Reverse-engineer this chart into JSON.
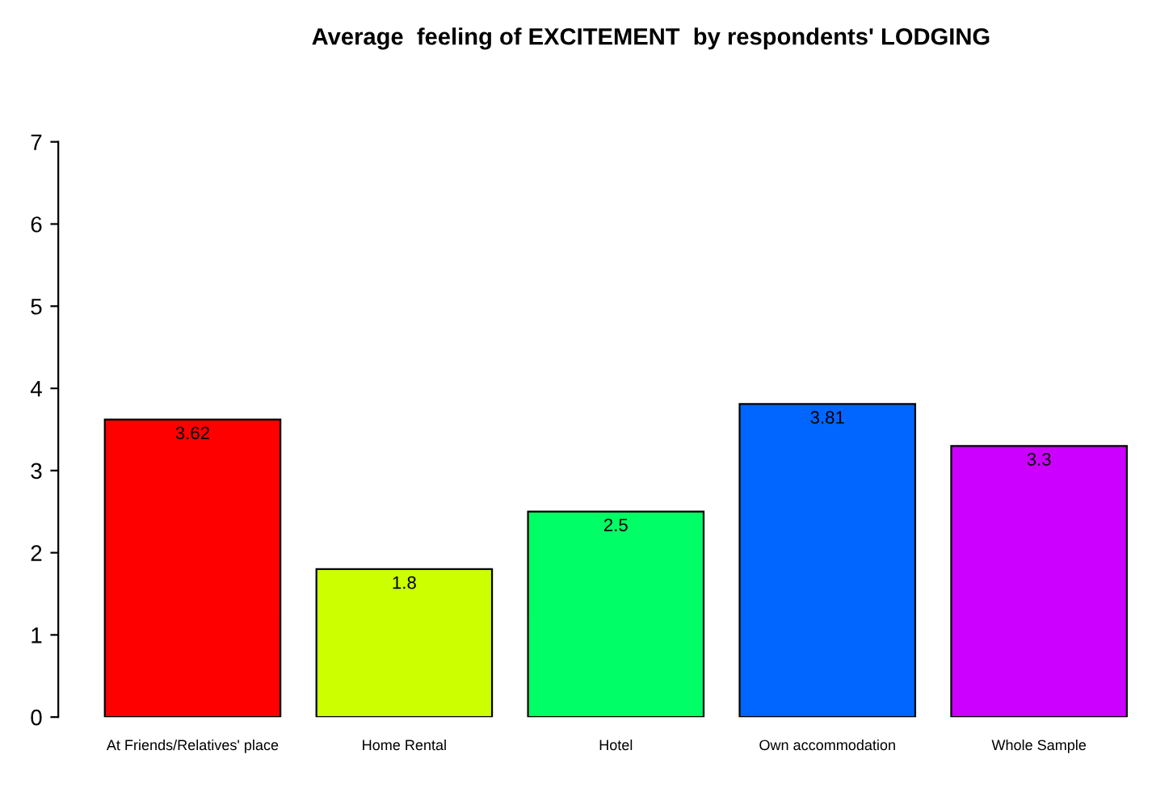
{
  "chart_data": {
    "type": "bar",
    "title": "Average  feeling of EXCITEMENT  by respondents' LODGING",
    "categories": [
      "At Friends/Relatives' place",
      "Home Rental",
      "Hotel",
      "Own accommodation",
      "Whole Sample"
    ],
    "values": [
      3.62,
      1.8,
      2.5,
      3.81,
      3.3
    ],
    "colors": [
      "#ff0000",
      "#ccff00",
      "#00ff66",
      "#0066ff",
      "#cc00ff"
    ],
    "ylim": [
      0,
      7
    ],
    "yticks": [
      0,
      1,
      2,
      3,
      4,
      5,
      6,
      7
    ],
    "data_labels": true,
    "grid": false,
    "legend": false
  }
}
